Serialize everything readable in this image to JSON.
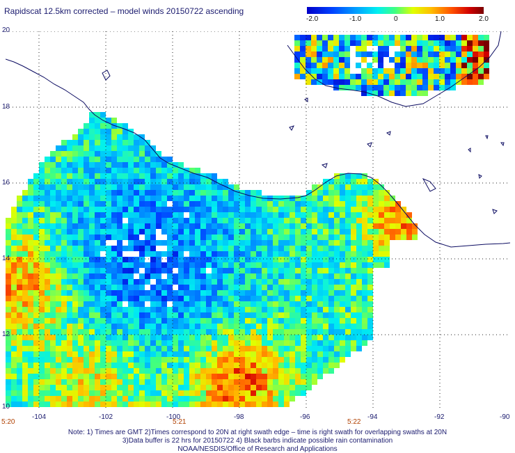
{
  "title": "Rapidscat 12.5km corrected – model winds 20150722 ascending",
  "colorbar": {
    "ticks": [
      "-2.0",
      "-1.0",
      "0",
      "1.0",
      "2.0"
    ],
    "range": [
      -2.0,
      2.0
    ]
  },
  "map": {
    "lon_ticks": [
      "-104",
      "-102",
      "-100",
      "-98",
      "-96",
      "-94",
      "-92",
      "-90"
    ],
    "lat_ticks": [
      "20",
      "18",
      "16",
      "14",
      "12",
      "10"
    ],
    "time_labels": [
      "5:20",
      "5:21",
      "5:22"
    ],
    "lon_range": [
      -105,
      -90
    ],
    "lat_range": [
      10,
      20
    ],
    "grid": "dotted"
  },
  "notes": {
    "line1": "Note: 1) Times are GMT 2)Times correspond to 20N at right swath edge – time is right swath for overlapping swaths at 20N",
    "line2": "3)Data buffer is 22 hrs for 20150722 4) Black barbs indicate possible rain contamination",
    "line3": "NOAA/NESDIS/Office of Research and Applications"
  },
  "colors": {
    "text": "#1a1a6e",
    "time": "#b04000",
    "coast": "#0a0a60",
    "grid": "#222222"
  }
}
